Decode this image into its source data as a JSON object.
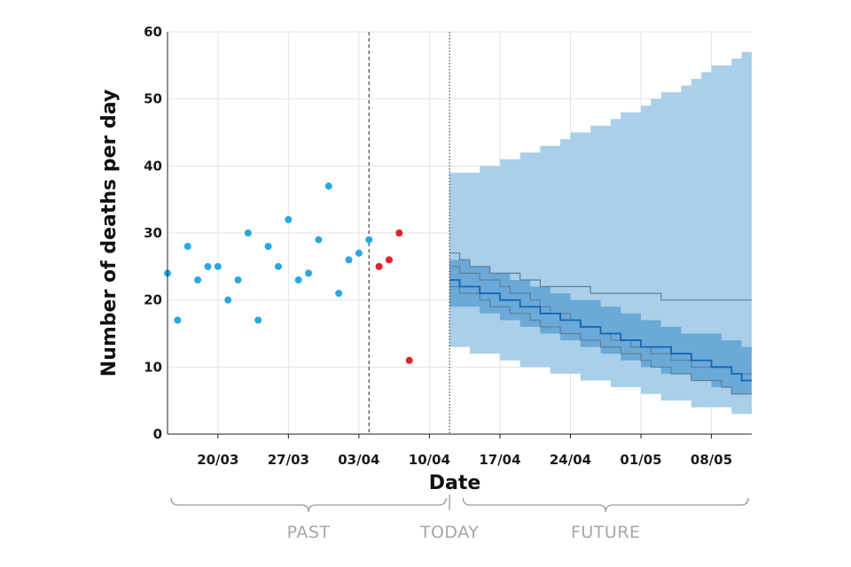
{
  "chart_data": {
    "type": "scatter",
    "xlabel": "Date",
    "ylabel": "Number of deaths per day",
    "ylim": [
      0,
      60
    ],
    "y_ticks": [
      0,
      10,
      20,
      30,
      40,
      50,
      60
    ],
    "xlim": [
      "2020-03-15",
      "2020-05-12"
    ],
    "x_ticks": [
      {
        "date": "2020-03-20",
        "label": "20/03"
      },
      {
        "date": "2020-03-27",
        "label": "27/03"
      },
      {
        "date": "2020-04-03",
        "label": "03/04"
      },
      {
        "date": "2020-04-10",
        "label": "10/04"
      },
      {
        "date": "2020-04-17",
        "label": "17/04"
      },
      {
        "date": "2020-04-24",
        "label": "24/04"
      },
      {
        "date": "2020-05-01",
        "label": "01/05"
      },
      {
        "date": "2020-05-08",
        "label": "08/05"
      }
    ],
    "grid": true,
    "vlines": [
      {
        "date": "2020-04-04",
        "style": "dashed"
      },
      {
        "date": "2020-04-12",
        "style": "dotted"
      }
    ],
    "colors": {
      "observed": "#29a8e0",
      "highlight": "#e3202a",
      "band_outer": "#a9cfea",
      "band_inner": "#6aa9d8",
      "median": "#1465b0",
      "scenario": "#5f7f99"
    },
    "series": [
      {
        "role": "observed",
        "x": [
          "2020-03-15",
          "2020-03-16",
          "2020-03-17",
          "2020-03-18",
          "2020-03-19",
          "2020-03-20",
          "2020-03-21",
          "2020-03-22",
          "2020-03-23",
          "2020-03-24",
          "2020-03-25",
          "2020-03-26",
          "2020-03-27",
          "2020-03-28",
          "2020-03-29",
          "2020-03-30",
          "2020-03-31",
          "2020-04-01",
          "2020-04-02",
          "2020-04-03",
          "2020-04-04"
        ],
        "y": [
          24,
          17,
          28,
          23,
          25,
          25,
          20,
          23,
          30,
          17,
          28,
          25,
          32,
          23,
          24,
          29,
          37,
          21,
          26,
          27,
          29
        ]
      },
      {
        "role": "highlight",
        "x": [
          "2020-04-05",
          "2020-04-06",
          "2020-04-07",
          "2020-04-08"
        ],
        "y": [
          25,
          26,
          30,
          11
        ]
      },
      {
        "role": "band_outer",
        "x": [
          "2020-04-12",
          "2020-04-13",
          "2020-04-14",
          "2020-04-15",
          "2020-04-16",
          "2020-04-17",
          "2020-04-18",
          "2020-04-19",
          "2020-04-20",
          "2020-04-21",
          "2020-04-22",
          "2020-04-23",
          "2020-04-24",
          "2020-04-25",
          "2020-04-26",
          "2020-04-27",
          "2020-04-28",
          "2020-04-29",
          "2020-04-30",
          "2020-05-01",
          "2020-05-02",
          "2020-05-03",
          "2020-05-04",
          "2020-05-05",
          "2020-05-06",
          "2020-05-07",
          "2020-05-08",
          "2020-05-09",
          "2020-05-10",
          "2020-05-11"
        ],
        "upper": [
          39,
          39,
          39,
          40,
          40,
          41,
          41,
          42,
          42,
          43,
          43,
          44,
          45,
          45,
          46,
          46,
          47,
          48,
          48,
          49,
          50,
          51,
          51,
          52,
          53,
          54,
          55,
          55,
          56,
          57
        ],
        "lower": [
          13,
          13,
          12,
          12,
          12,
          11,
          11,
          10,
          10,
          10,
          9,
          9,
          9,
          8,
          8,
          8,
          7,
          7,
          7,
          6,
          6,
          5,
          5,
          5,
          4,
          4,
          4,
          4,
          3,
          3
        ]
      },
      {
        "role": "band_inner",
        "x": [
          "2020-04-12",
          "2020-04-13",
          "2020-04-14",
          "2020-04-15",
          "2020-04-16",
          "2020-04-17",
          "2020-04-18",
          "2020-04-19",
          "2020-04-20",
          "2020-04-21",
          "2020-04-22",
          "2020-04-23",
          "2020-04-24",
          "2020-04-25",
          "2020-04-26",
          "2020-04-27",
          "2020-04-28",
          "2020-04-29",
          "2020-04-30",
          "2020-05-01",
          "2020-05-02",
          "2020-05-03",
          "2020-05-04",
          "2020-05-05",
          "2020-05-06",
          "2020-05-07",
          "2020-05-08",
          "2020-05-09",
          "2020-05-10",
          "2020-05-11"
        ],
        "upper": [
          26,
          26,
          25,
          25,
          24,
          24,
          23,
          23,
          22,
          22,
          21,
          21,
          20,
          20,
          20,
          19,
          19,
          18,
          18,
          17,
          17,
          16,
          16,
          15,
          15,
          15,
          15,
          14,
          14,
          13
        ],
        "lower": [
          19,
          19,
          19,
          18,
          18,
          17,
          17,
          16,
          16,
          15,
          15,
          14,
          14,
          13,
          13,
          12,
          12,
          11,
          11,
          10,
          10,
          9,
          9,
          9,
          8,
          8,
          7,
          7,
          6,
          6
        ]
      },
      {
        "role": "median",
        "x": [
          "2020-04-12",
          "2020-04-13",
          "2020-04-14",
          "2020-04-15",
          "2020-04-16",
          "2020-04-17",
          "2020-04-18",
          "2020-04-19",
          "2020-04-20",
          "2020-04-21",
          "2020-04-22",
          "2020-04-23",
          "2020-04-24",
          "2020-04-25",
          "2020-04-26",
          "2020-04-27",
          "2020-04-28",
          "2020-04-29",
          "2020-04-30",
          "2020-05-01",
          "2020-05-02",
          "2020-05-03",
          "2020-05-04",
          "2020-05-05",
          "2020-05-06",
          "2020-05-07",
          "2020-05-08",
          "2020-05-09",
          "2020-05-10",
          "2020-05-11"
        ],
        "y": [
          23,
          22,
          22,
          21,
          21,
          20,
          20,
          19,
          19,
          18,
          18,
          17,
          17,
          16,
          16,
          15,
          15,
          14,
          14,
          13,
          13,
          13,
          12,
          12,
          11,
          11,
          10,
          10,
          9,
          8
        ]
      },
      {
        "role": "scenario",
        "x": [
          "2020-04-12",
          "2020-04-13",
          "2020-04-14",
          "2020-04-15",
          "2020-04-16",
          "2020-04-17",
          "2020-04-18",
          "2020-04-19",
          "2020-04-20",
          "2020-04-21",
          "2020-04-22",
          "2020-04-23",
          "2020-04-24",
          "2020-04-25",
          "2020-04-26",
          "2020-04-27",
          "2020-04-28",
          "2020-04-29",
          "2020-04-30",
          "2020-05-01",
          "2020-05-02",
          "2020-05-03",
          "2020-05-04",
          "2020-05-05",
          "2020-05-06",
          "2020-05-07",
          "2020-05-08",
          "2020-05-09",
          "2020-05-10",
          "2020-05-11"
        ],
        "y": [
          27,
          26,
          25,
          25,
          24,
          24,
          24,
          23,
          23,
          22,
          22,
          22,
          22,
          22,
          21,
          21,
          21,
          21,
          21,
          21,
          21,
          20,
          20,
          20,
          20,
          20,
          20,
          20,
          20,
          20
        ]
      },
      {
        "role": "scenario",
        "x": [
          "2020-04-12",
          "2020-04-13",
          "2020-04-14",
          "2020-04-15",
          "2020-04-16",
          "2020-04-17",
          "2020-04-18",
          "2020-04-19",
          "2020-04-20",
          "2020-04-21",
          "2020-04-22",
          "2020-04-23",
          "2020-04-24",
          "2020-04-25",
          "2020-04-26",
          "2020-04-27",
          "2020-04-28",
          "2020-04-29",
          "2020-04-30",
          "2020-05-01",
          "2020-05-02",
          "2020-05-03",
          "2020-05-04",
          "2020-05-05",
          "2020-05-06",
          "2020-05-07",
          "2020-05-08",
          "2020-05-09",
          "2020-05-10",
          "2020-05-11"
        ],
        "y": [
          25,
          24,
          24,
          23,
          23,
          22,
          21,
          21,
          20,
          19,
          18,
          18,
          17,
          16,
          16,
          15,
          14,
          14,
          13,
          13,
          12,
          12,
          11,
          11,
          10,
          10,
          10,
          10,
          9,
          9
        ]
      },
      {
        "role": "scenario",
        "x": [
          "2020-04-12",
          "2020-04-13",
          "2020-04-14",
          "2020-04-15",
          "2020-04-16",
          "2020-04-17",
          "2020-04-18",
          "2020-04-19",
          "2020-04-20",
          "2020-04-21",
          "2020-04-22",
          "2020-04-23",
          "2020-04-24",
          "2020-04-25",
          "2020-04-26",
          "2020-04-27",
          "2020-04-28",
          "2020-04-29",
          "2020-04-30",
          "2020-05-01",
          "2020-05-02",
          "2020-05-03",
          "2020-05-04",
          "2020-05-05",
          "2020-05-06",
          "2020-05-07",
          "2020-05-08",
          "2020-05-09",
          "2020-05-10",
          "2020-05-11"
        ],
        "y": [
          22,
          21,
          21,
          20,
          19,
          19,
          18,
          18,
          17,
          16,
          16,
          15,
          15,
          14,
          14,
          13,
          13,
          12,
          12,
          11,
          10,
          10,
          9,
          9,
          8,
          8,
          8,
          7,
          6,
          6
        ]
      }
    ],
    "periods": [
      {
        "label": "PAST",
        "from": "2020-03-15",
        "to": "2020-04-11"
      },
      {
        "label": "TODAY",
        "at": "2020-04-12"
      },
      {
        "label": "FUTURE",
        "from": "2020-04-13",
        "to": "2020-05-11"
      }
    ]
  }
}
